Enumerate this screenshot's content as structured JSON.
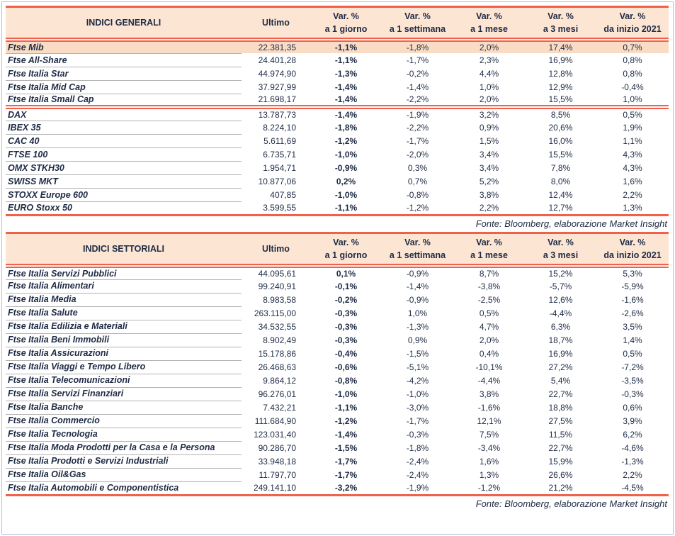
{
  "colors": {
    "accent_coral": "#f0604a",
    "header_background": "#fce5d3",
    "highlight_row_background": "#fadcc4",
    "text": "#1e2b45",
    "page_frame": "#a9c3dd",
    "row_separator": "#b3b3b3"
  },
  "tables": [
    {
      "title": "INDICI GENERALI",
      "ultimo_label": "Ultimo",
      "var_columns": [
        {
          "top": "Var. %",
          "bottom": "a 1 giorno"
        },
        {
          "top": "Var. %",
          "bottom": "a 1 settimana"
        },
        {
          "top": "Var. %",
          "bottom": "a 1 mese"
        },
        {
          "top": "Var. %",
          "bottom": "a 3 mesi"
        },
        {
          "top": "Var. %",
          "bottom": "da inizio 2021"
        }
      ],
      "source_note": "Fonte: Bloomberg, elaborazione Market Insight",
      "groups": [
        {
          "rows": [
            {
              "name": "Ftse Mib",
              "ultimo": "22.381,35",
              "values": [
                "-1,1%",
                "-1,8%",
                "2,0%",
                "17,4%",
                "0,7%"
              ],
              "highlight": true
            },
            {
              "name": "Ftse All-Share",
              "ultimo": "24.401,28",
              "values": [
                "-1,1%",
                "-1,7%",
                "2,3%",
                "16,9%",
                "0,8%"
              ]
            },
            {
              "name": "Ftse Italia Star",
              "ultimo": "44.974,90",
              "values": [
                "-1,3%",
                "-0,2%",
                "4,4%",
                "12,8%",
                "0,8%"
              ]
            },
            {
              "name": "Ftse Italia Mid Cap",
              "ultimo": "37.927,99",
              "values": [
                "-1,4%",
                "-1,4%",
                "1,0%",
                "12,9%",
                "-0,4%"
              ]
            },
            {
              "name": "Ftse Italia Small Cap",
              "ultimo": "21.698,17",
              "values": [
                "-1,4%",
                "-2,2%",
                "2,0%",
                "15,5%",
                "1,0%"
              ]
            }
          ]
        },
        {
          "rows": [
            {
              "name": "DAX",
              "ultimo": "13.787,73",
              "values": [
                "-1,4%",
                "-1,9%",
                "3,2%",
                "8,5%",
                "0,5%"
              ]
            },
            {
              "name": "IBEX 35",
              "ultimo": "8.224,10",
              "values": [
                "-1,8%",
                "-2,2%",
                "0,9%",
                "20,6%",
                "1,9%"
              ]
            },
            {
              "name": "CAC 40",
              "ultimo": "5.611,69",
              "values": [
                "-1,2%",
                "-1,7%",
                "1,5%",
                "16,0%",
                "1,1%"
              ]
            },
            {
              "name": "FTSE 100",
              "ultimo": "6.735,71",
              "values": [
                "-1,0%",
                "-2,0%",
                "3,4%",
                "15,5%",
                "4,3%"
              ]
            },
            {
              "name": "OMX STKH30",
              "ultimo": "1.954,71",
              "values": [
                "-0,9%",
                "0,3%",
                "3,4%",
                "7,8%",
                "4,3%"
              ]
            },
            {
              "name": "SWISS MKT",
              "ultimo": "10.877,06",
              "values": [
                "0,2%",
                "0,7%",
                "5,2%",
                "8,0%",
                "1,6%"
              ]
            },
            {
              "name": "STOXX Europe 600",
              "ultimo": "407,85",
              "values": [
                "-1,0%",
                "-0,8%",
                "3,8%",
                "12,4%",
                "2,2%"
              ]
            },
            {
              "name": "EURO Stoxx 50",
              "ultimo": "3.599,55",
              "values": [
                "-1,1%",
                "-1,2%",
                "2,2%",
                "12,7%",
                "1,3%"
              ]
            }
          ]
        }
      ]
    },
    {
      "title": "INDICI SETTORIALI",
      "ultimo_label": "Ultimo",
      "var_columns": [
        {
          "top": "Var. %",
          "bottom": "a 1 giorno"
        },
        {
          "top": "Var. %",
          "bottom": "a 1 settimana"
        },
        {
          "top": "Var. %",
          "bottom": "a 1 mese"
        },
        {
          "top": "Var. %",
          "bottom": "a 3 mesi"
        },
        {
          "top": "Var. %",
          "bottom": "da inizio 2021"
        }
      ],
      "source_note": "Fonte: Bloomberg, elaborazione Market Insight",
      "groups": [
        {
          "rows": [
            {
              "name": "Ftse Italia Servizi Pubblici",
              "ultimo": "44.095,61",
              "values": [
                "0,1%",
                "-0,9%",
                "8,7%",
                "15,2%",
                "5,3%"
              ]
            },
            {
              "name": "Ftse Italia Alimentari",
              "ultimo": "99.240,91",
              "values": [
                "-0,1%",
                "-1,4%",
                "-3,8%",
                "-5,7%",
                "-5,9%"
              ]
            },
            {
              "name": "Ftse Italia Media",
              "ultimo": "8.983,58",
              "values": [
                "-0,2%",
                "-0,9%",
                "-2,5%",
                "12,6%",
                "-1,6%"
              ]
            },
            {
              "name": "Ftse Italia Salute",
              "ultimo": "263.115,00",
              "values": [
                "-0,3%",
                "1,0%",
                "0,5%",
                "-4,4%",
                "-2,6%"
              ]
            },
            {
              "name": "Ftse Italia Edilizia e Materiali",
              "ultimo": "34.532,55",
              "values": [
                "-0,3%",
                "-1,3%",
                "4,7%",
                "6,3%",
                "3,5%"
              ]
            },
            {
              "name": "Ftse Italia Beni Immobili",
              "ultimo": "8.902,49",
              "values": [
                "-0,3%",
                "0,9%",
                "2,0%",
                "18,7%",
                "1,4%"
              ]
            },
            {
              "name": "Ftse Italia Assicurazioni",
              "ultimo": "15.178,86",
              "values": [
                "-0,4%",
                "-1,5%",
                "0,4%",
                "16,9%",
                "0,5%"
              ]
            },
            {
              "name": "Ftse Italia Viaggi e Tempo Libero",
              "ultimo": "26.468,63",
              "values": [
                "-0,6%",
                "-5,1%",
                "-10,1%",
                "27,2%",
                "-7,2%"
              ]
            },
            {
              "name": "Ftse Italia Telecomunicazioni",
              "ultimo": "9.864,12",
              "values": [
                "-0,8%",
                "-4,2%",
                "-4,4%",
                "5,4%",
                "-3,5%"
              ]
            },
            {
              "name": "Ftse Italia Servizi Finanziari",
              "ultimo": "96.276,01",
              "values": [
                "-1,0%",
                "-1,0%",
                "3,8%",
                "22,7%",
                "-0,3%"
              ]
            },
            {
              "name": "Ftse Italia Banche",
              "ultimo": "7.432,21",
              "values": [
                "-1,1%",
                "-3,0%",
                "-1,6%",
                "18,8%",
                "0,6%"
              ]
            },
            {
              "name": "Ftse Italia Commercio",
              "ultimo": "111.684,90",
              "values": [
                "-1,2%",
                "-1,7%",
                "12,1%",
                "27,5%",
                "3,9%"
              ]
            },
            {
              "name": "Ftse Italia Tecnologia",
              "ultimo": "123.031,40",
              "values": [
                "-1,4%",
                "-0,3%",
                "7,5%",
                "11,5%",
                "6,2%"
              ]
            },
            {
              "name": "Ftse Italia Moda Prodotti per la Casa e la Persona",
              "ultimo": "90.286,70",
              "values": [
                "-1,5%",
                "-1,8%",
                "-3,4%",
                "22,7%",
                "-4,6%"
              ]
            },
            {
              "name": "Ftse Italia Prodotti e Servizi Industriali",
              "ultimo": "33.948,18",
              "values": [
                "-1,7%",
                "-2,4%",
                "1,6%",
                "15,9%",
                "-1,3%"
              ]
            },
            {
              "name": "Ftse Italia Oil&Gas",
              "ultimo": "11.797,70",
              "values": [
                "-1,7%",
                "-2,4%",
                "1,3%",
                "26,6%",
                "2,2%"
              ]
            },
            {
              "name": "Ftse Italia Automobili e Componentistica",
              "ultimo": "249.141,10",
              "values": [
                "-3,2%",
                "-1,9%",
                "-1,2%",
                "21,2%",
                "-4,5%"
              ]
            }
          ]
        }
      ]
    }
  ]
}
